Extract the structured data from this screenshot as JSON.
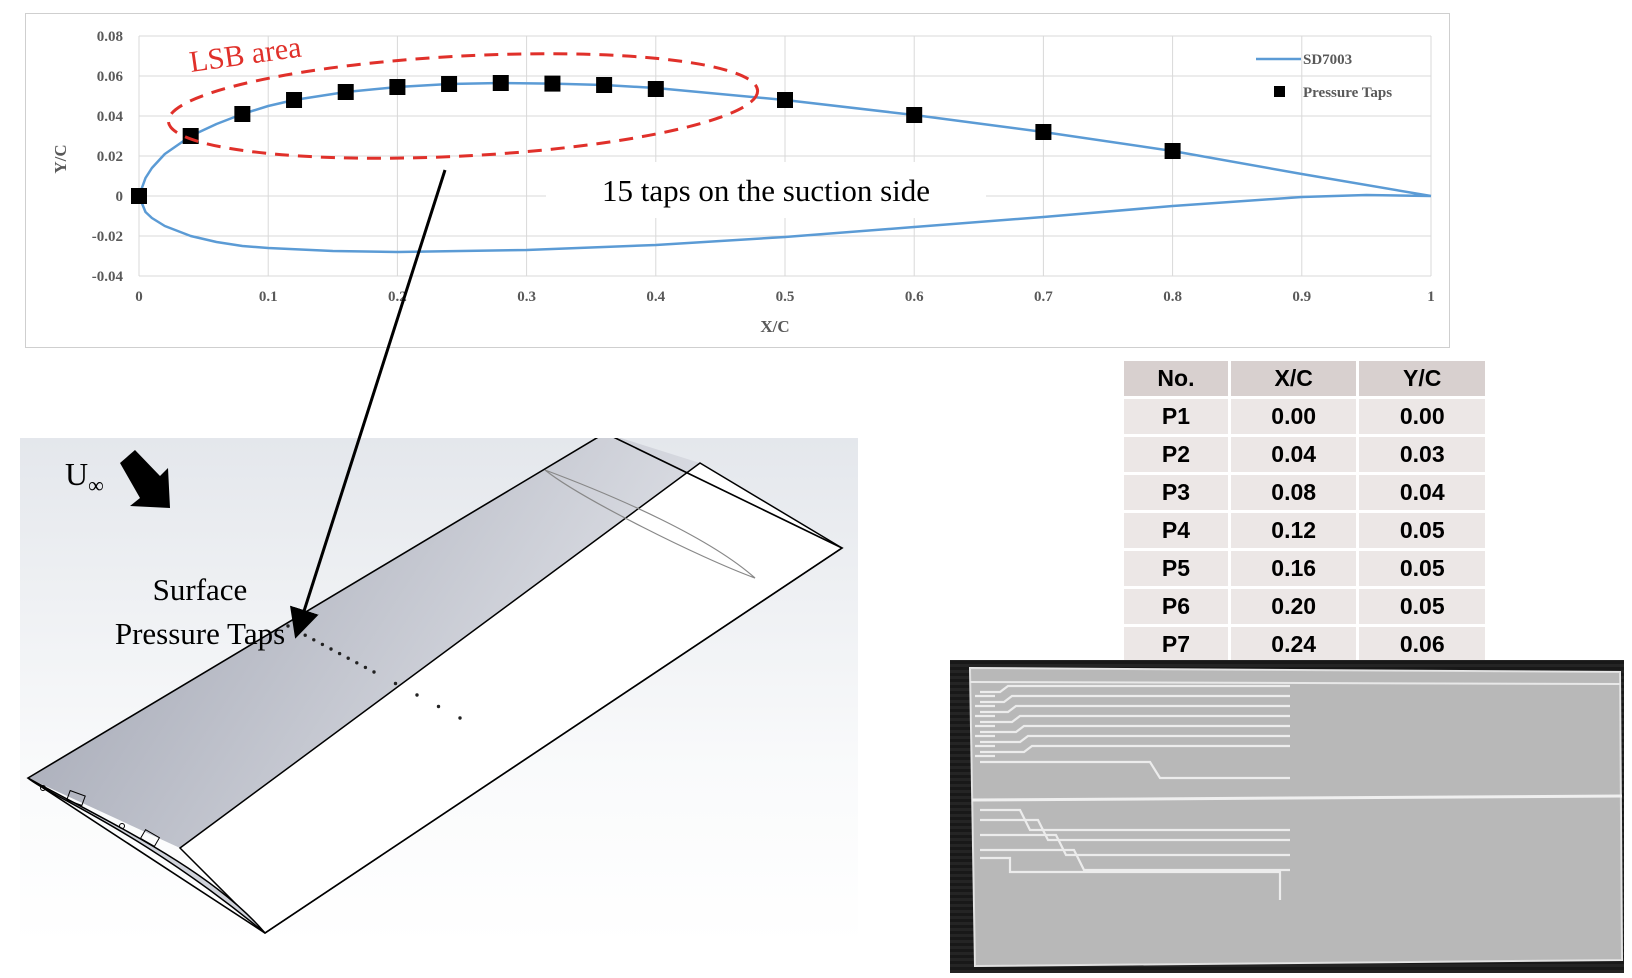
{
  "chart_data": {
    "type": "line",
    "xlabel": "X/C",
    "ylabel": "Y/C",
    "xlim": [
      0,
      1
    ],
    "ylim": [
      -0.04,
      0.08
    ],
    "x_ticks": [
      "0",
      "0.1",
      "0.2",
      "0.3",
      "0.4",
      "0.5",
      "0.6",
      "0.7",
      "0.8",
      "0.9",
      "1"
    ],
    "y_ticks": [
      "0.08",
      "0.06",
      "0.04",
      "0.02",
      "0",
      "-0.02",
      "-0.04"
    ],
    "grid": true,
    "legend_position": "top-right",
    "series": [
      {
        "name": "SD7003",
        "kind": "line",
        "color": "#5b9bd5",
        "upper_surface": {
          "x": [
            0,
            0.005,
            0.01,
            0.02,
            0.04,
            0.06,
            0.08,
            0.1,
            0.12,
            0.16,
            0.2,
            0.24,
            0.28,
            0.32,
            0.36,
            0.4,
            0.5,
            0.6,
            0.7,
            0.8,
            0.9,
            1.0
          ],
          "y": [
            0,
            0.009,
            0.014,
            0.021,
            0.03,
            0.036,
            0.041,
            0.045,
            0.048,
            0.052,
            0.0545,
            0.056,
            0.0565,
            0.0562,
            0.0555,
            0.054,
            0.048,
            0.0405,
            0.032,
            0.0225,
            0.011,
            0
          ]
        },
        "lower_surface": {
          "x": [
            0,
            0.005,
            0.01,
            0.02,
            0.04,
            0.06,
            0.08,
            0.1,
            0.15,
            0.2,
            0.3,
            0.4,
            0.5,
            0.6,
            0.7,
            0.8,
            0.9,
            0.95,
            1.0
          ],
          "y": [
            0,
            -0.008,
            -0.011,
            -0.015,
            -0.02,
            -0.023,
            -0.025,
            -0.026,
            -0.0275,
            -0.028,
            -0.027,
            -0.0245,
            -0.0205,
            -0.0155,
            -0.0105,
            -0.005,
            -0.0005,
            0.0005,
            0
          ]
        }
      },
      {
        "name": "Pressure Taps",
        "kind": "scatter",
        "marker": "square",
        "color": "#000000",
        "x": [
          0,
          0.04,
          0.08,
          0.12,
          0.16,
          0.2,
          0.24,
          0.28,
          0.32,
          0.36,
          0.4,
          0.5,
          0.6,
          0.7,
          0.8
        ],
        "y": [
          0,
          0.03,
          0.041,
          0.048,
          0.052,
          0.0545,
          0.056,
          0.0565,
          0.0562,
          0.0555,
          0.0535,
          0.048,
          0.0405,
          0.032,
          0.0225
        ]
      }
    ],
    "annotations": {
      "lsb_label": "LSB area",
      "taps_note": "15 taps on the suction side"
    }
  },
  "wing": {
    "freestream_label": "U",
    "freestream_subscript": "∞",
    "surface_label_line1": "Surface",
    "surface_label_line2": "Pressure Taps"
  },
  "tap_table": {
    "headers": [
      "No.",
      "X/C",
      "Y/C"
    ],
    "rows": [
      [
        "P1",
        "0.00",
        "0.00"
      ],
      [
        "P2",
        "0.04",
        "0.03"
      ],
      [
        "P3",
        "0.08",
        "0.04"
      ],
      [
        "P4",
        "0.12",
        "0.05"
      ],
      [
        "P5",
        "0.16",
        "0.05"
      ],
      [
        "P6",
        "0.20",
        "0.05"
      ],
      [
        "P7",
        "0.24",
        "0.06"
      ]
    ]
  },
  "colors": {
    "airfoil_line": "#5b9bd5",
    "lsb_ellipse": "#e0302a",
    "grid": "#d9d9d9"
  }
}
